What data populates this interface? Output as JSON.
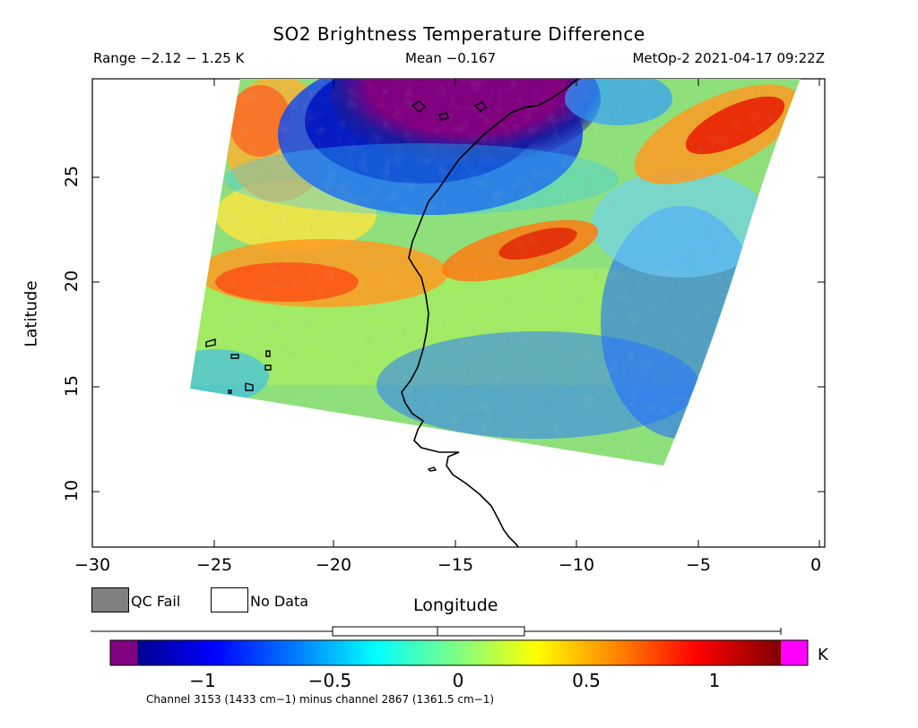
{
  "header": {
    "title": "SO2 Brightness Temperature Difference",
    "range": "Range −2.12 − 1.25 K",
    "mean": "Mean −0.167",
    "satellite": "MetOp-2 2021-04-17 09:22Z"
  },
  "axes": {
    "xlabel": "Longitude",
    "ylabel": "Latitude",
    "xticks": [
      "−30",
      "−25",
      "−20",
      "−15",
      "−10",
      "−5",
      "0"
    ],
    "yticks": [
      "10",
      "15",
      "20",
      "25"
    ],
    "xlim": [
      -30,
      0
    ],
    "ylim": [
      7.5,
      29.5
    ]
  },
  "legend": {
    "qc_fail": "QC Fail",
    "no_data": "No Data",
    "qc_fail_color": "#808080",
    "no_data_color": "#ffffff"
  },
  "colorbar": {
    "ticks": [
      "−1",
      "−0.5",
      "0",
      "0.5",
      "1"
    ],
    "unit": "K",
    "min": -1.25,
    "max": 1.25,
    "under_color": "#800080",
    "over_color": "#ff00ff",
    "note": "Channel 3153 (1433 cm−1) minus channel 2867 (1361.5 cm−1)"
  }
}
